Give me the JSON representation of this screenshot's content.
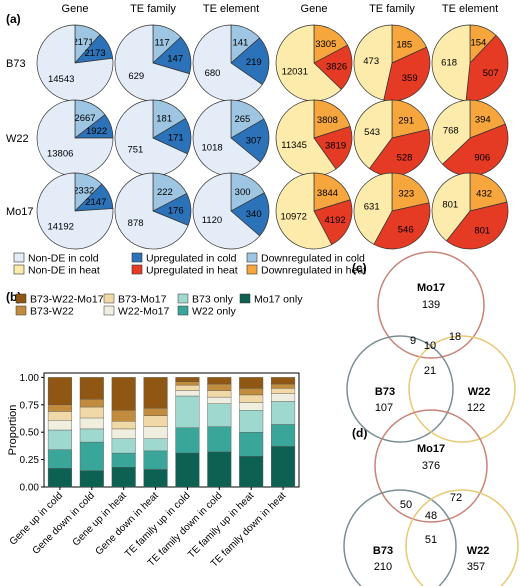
{
  "figure": {
    "panel_labels": {
      "a": "(a)",
      "b": "(b)",
      "c": "(c)",
      "d": "(d)"
    },
    "colors": {
      "cold_nonde": "#e3ecf7",
      "cold_up": "#2b72b8",
      "cold_down": "#9ec6e2",
      "heat_nonde": "#fcebaa",
      "heat_up": "#e53a23",
      "heat_down": "#f6a63c",
      "mo17_only": "#0c6153",
      "w22_only": "#3aa699",
      "b73_only": "#9fd8cf",
      "w22_mo17": "#f0eede",
      "b73_mo17": "#f0d9a6",
      "b73_w22": "#c28c3e",
      "b73_w22_mo17": "#8f5614",
      "venn_mo17": "#c98377",
      "venn_b73": "#7a8e94",
      "venn_w22": "#e8c873"
    }
  },
  "panel_a": {
    "column_headers": [
      "Gene",
      "TE family",
      "TE element",
      "Gene",
      "TE family",
      "TE element"
    ],
    "row_labels": [
      "B73",
      "W22",
      "Mo17"
    ],
    "legend": [
      {
        "label": "Non-DE in cold",
        "color_key": "cold_nonde"
      },
      {
        "label": "Upregulated in cold",
        "color_key": "cold_up"
      },
      {
        "label": "Downregulated in cold",
        "color_key": "cold_down"
      },
      {
        "label": "Non-DE in heat",
        "color_key": "heat_nonde"
      },
      {
        "label": "Upregulated in heat",
        "color_key": "heat_up"
      },
      {
        "label": "Downregulated in heat",
        "color_key": "heat_down"
      }
    ],
    "rows": [
      [
        {
          "condition": "cold",
          "nonde": 14543,
          "down": 2171,
          "up": 2173
        },
        {
          "condition": "cold",
          "nonde": 629,
          "down": 117,
          "up": 147
        },
        {
          "condition": "cold",
          "nonde": 680,
          "down": 141,
          "up": 219
        },
        {
          "condition": "heat",
          "nonde": 12031,
          "down": 3305,
          "up": 3826
        },
        {
          "condition": "heat",
          "nonde": 473,
          "down": 185,
          "up": 359
        },
        {
          "condition": "heat",
          "nonde": 618,
          "down": 154,
          "up": 507
        }
      ],
      [
        {
          "condition": "cold",
          "nonde": 13806,
          "down": 2667,
          "up": 1922
        },
        {
          "condition": "cold",
          "nonde": 751,
          "down": 181,
          "up": 171
        },
        {
          "condition": "cold",
          "nonde": 1018,
          "down": 265,
          "up": 307
        },
        {
          "condition": "heat",
          "nonde": 11345,
          "down": 3808,
          "up": 3819
        },
        {
          "condition": "heat",
          "nonde": 543,
          "down": 291,
          "up": 528
        },
        {
          "condition": "heat",
          "nonde": 768,
          "down": 394,
          "up": 906
        }
      ],
      [
        {
          "condition": "cold",
          "nonde": 14192,
          "down": 2332,
          "up": 2147
        },
        {
          "condition": "cold",
          "nonde": 878,
          "down": 222,
          "up": 176
        },
        {
          "condition": "cold",
          "nonde": 1120,
          "down": 300,
          "up": 340
        },
        {
          "condition": "heat",
          "nonde": 10972,
          "down": 3844,
          "up": 4192
        },
        {
          "condition": "heat",
          "nonde": 631,
          "down": 323,
          "up": 546
        },
        {
          "condition": "heat",
          "nonde": 801,
          "down": 432,
          "up": 801
        }
      ]
    ]
  },
  "chart_data": {
    "type": "bar",
    "stacked": true,
    "categories": [
      "Gene up in cold",
      "Gene down in cold",
      "Gene up in heat",
      "Gene down in heat",
      "TE family up in cold",
      "TE family down in cold",
      "TE family up in heat",
      "TE family down in heat"
    ],
    "ylabel": "Proportion",
    "ylim": [
      0,
      1
    ],
    "yticks": [
      "0.00",
      "0.25",
      "0.50",
      "0.75",
      "1.00"
    ],
    "grid": false,
    "legend_placement": "top",
    "series": [
      {
        "name": "Mo17 only",
        "color_key": "mo17_only",
        "values": [
          0.17,
          0.15,
          0.18,
          0.16,
          0.31,
          0.32,
          0.28,
          0.37
        ]
      },
      {
        "name": "W22 only",
        "color_key": "w22_only",
        "values": [
          0.17,
          0.26,
          0.13,
          0.17,
          0.23,
          0.23,
          0.22,
          0.2
        ]
      },
      {
        "name": "B73 only",
        "color_key": "b73_only",
        "values": [
          0.18,
          0.12,
          0.13,
          0.11,
          0.29,
          0.21,
          0.2,
          0.21
        ]
      },
      {
        "name": "W22-Mo17",
        "color_key": "w22_mo17",
        "values": [
          0.09,
          0.1,
          0.09,
          0.11,
          0.05,
          0.06,
          0.07,
          0.07
        ]
      },
      {
        "name": "B73-Mo17",
        "color_key": "b73_mo17",
        "values": [
          0.08,
          0.1,
          0.07,
          0.1,
          0.05,
          0.06,
          0.07,
          0.05
        ]
      },
      {
        "name": "B73-W22",
        "color_key": "b73_w22",
        "values": [
          0.06,
          0.07,
          0.1,
          0.07,
          0.03,
          0.06,
          0.06,
          0.04
        ]
      },
      {
        "name": "B73-W22-Mo17",
        "color_key": "b73_w22_mo17",
        "values": [
          0.25,
          0.2,
          0.3,
          0.28,
          0.04,
          0.06,
          0.1,
          0.06
        ]
      }
    ]
  },
  "venn_c": {
    "sets": [
      {
        "name": "Mo17",
        "only": "139",
        "color_key": "venn_mo17"
      },
      {
        "name": "B73",
        "only": "107",
        "color_key": "venn_b73"
      },
      {
        "name": "W22",
        "only": "122",
        "color_key": "venn_w22"
      }
    ],
    "mo17_b73": "9",
    "mo17_w22": "18",
    "b73_w22": "21",
    "all": "10"
  },
  "venn_d": {
    "sets": [
      {
        "name": "Mo17",
        "only": "376",
        "color_key": "venn_mo17"
      },
      {
        "name": "B73",
        "only": "210",
        "color_key": "venn_b73"
      },
      {
        "name": "W22",
        "only": "357",
        "color_key": "venn_w22"
      }
    ],
    "mo17_b73": "50",
    "mo17_w22": "72",
    "b73_w22": "51",
    "all": "48"
  }
}
